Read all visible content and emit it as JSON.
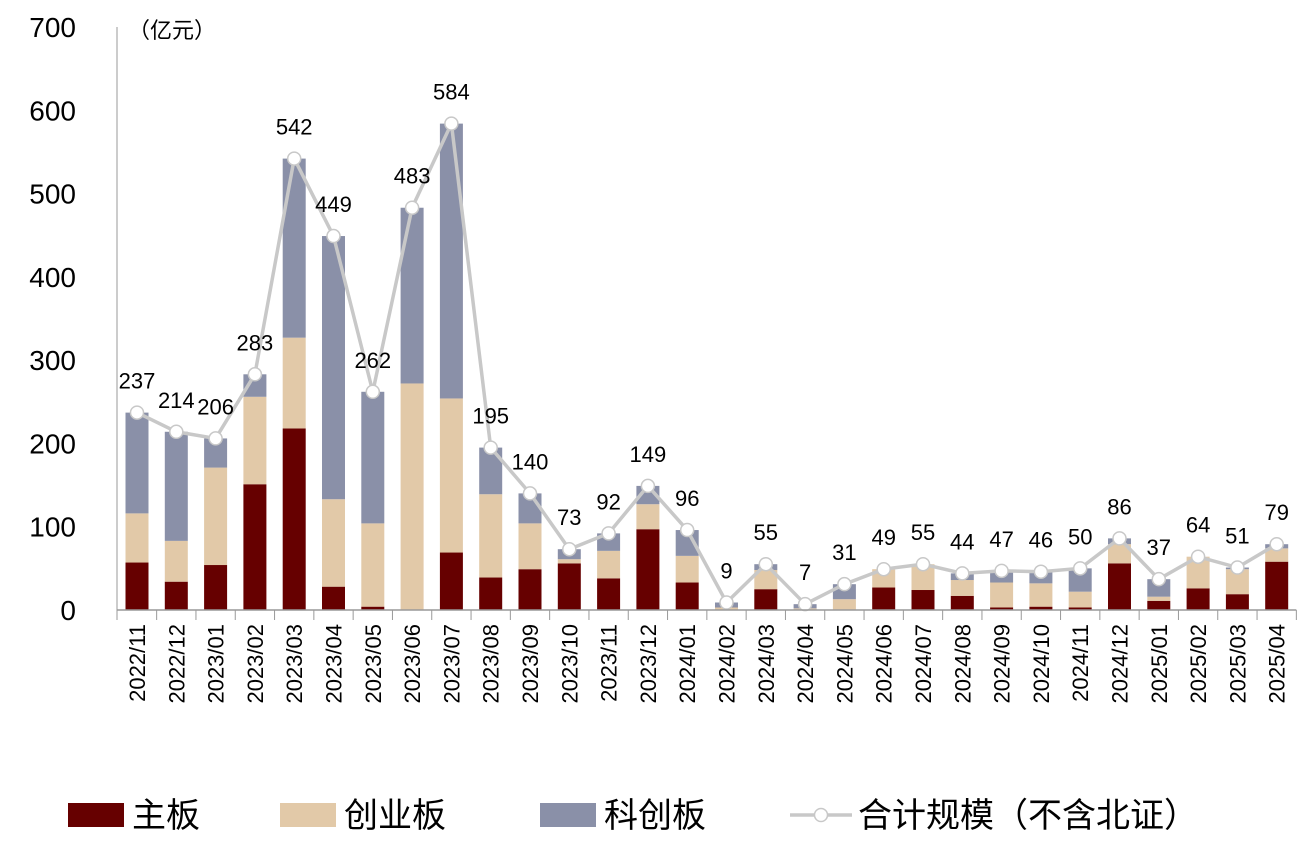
{
  "chart_data": {
    "type": "bar",
    "stacked": true,
    "unit_label": "（亿元）",
    "ylim": [
      0,
      700
    ],
    "yticks": [
      0,
      100,
      200,
      300,
      400,
      500,
      600,
      700
    ],
    "grid": false,
    "legend_placement": "bottom",
    "categories": [
      "2022/11",
      "2022/12",
      "2023/01",
      "2023/02",
      "2023/03",
      "2023/04",
      "2023/05",
      "2023/06",
      "2023/07",
      "2023/08",
      "2023/09",
      "2023/10",
      "2023/11",
      "2023/12",
      "2024/01",
      "2024/02",
      "2024/03",
      "2024/04",
      "2024/05",
      "2024/06",
      "2024/07",
      "2024/08",
      "2024/09",
      "2024/10",
      "2024/11",
      "2024/12",
      "2025/01",
      "2025/02",
      "2025/03",
      "2025/04"
    ],
    "series": [
      {
        "name": "主板",
        "type": "bar",
        "color": "#660000",
        "values": [
          57,
          34,
          54,
          151,
          218,
          28,
          4,
          0,
          69,
          39,
          49,
          56,
          38,
          97,
          33,
          0,
          25,
          0,
          0,
          27,
          24,
          17,
          3,
          4,
          3,
          56,
          11,
          26,
          19,
          58
        ]
      },
      {
        "name": "创业板",
        "type": "bar",
        "color": "#E2C9A8",
        "values": [
          59,
          49,
          117,
          105,
          109,
          105,
          100,
          272,
          185,
          100,
          55,
          5,
          33,
          30,
          32,
          3,
          23,
          2,
          13,
          22,
          31,
          19,
          30,
          28,
          19,
          23,
          5,
          38,
          30,
          16
        ]
      },
      {
        "name": "科创板",
        "type": "bar",
        "color": "#8A90A8",
        "values": [
          121,
          131,
          35,
          27,
          215,
          316,
          158,
          211,
          330,
          56,
          36,
          12,
          21,
          22,
          31,
          6,
          7,
          5,
          18,
          0,
          0,
          8,
          14,
          14,
          28,
          7,
          21,
          0,
          2,
          5
        ]
      },
      {
        "name": "合计规模（不含北证）",
        "type": "line",
        "color": "#C8C8C8",
        "values": [
          237,
          214,
          206,
          283,
          542,
          449,
          262,
          483,
          584,
          195,
          140,
          73,
          92,
          149,
          96,
          9,
          55,
          7,
          31,
          49,
          55,
          44,
          47,
          46,
          50,
          86,
          37,
          64,
          51,
          79
        ]
      }
    ]
  }
}
